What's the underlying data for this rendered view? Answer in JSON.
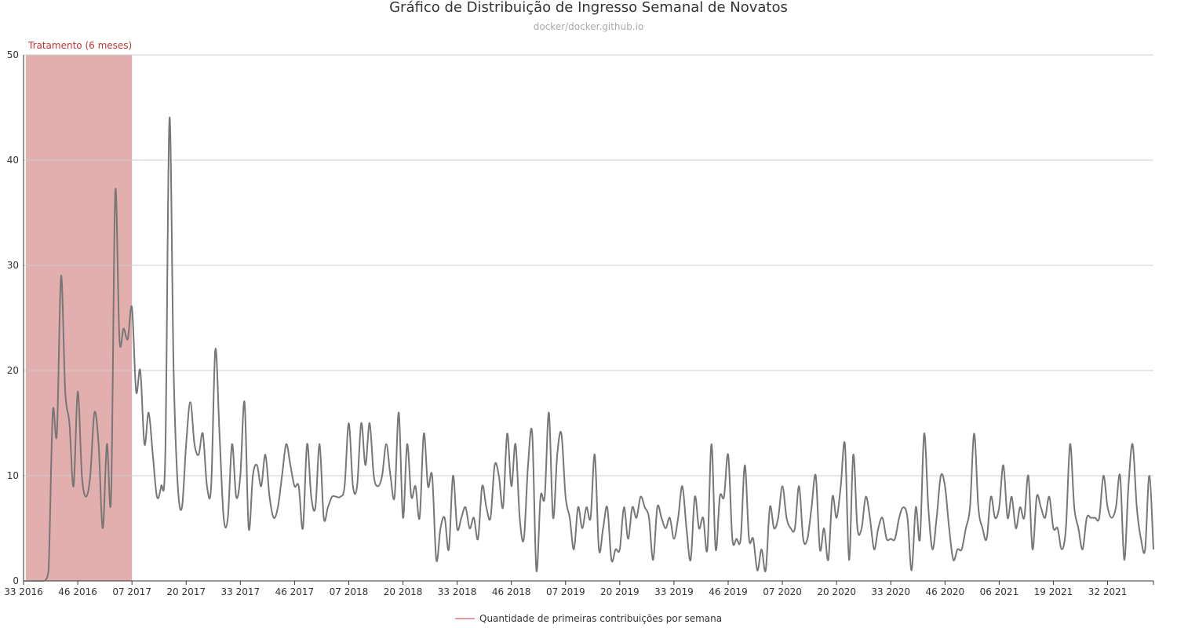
{
  "chart_data": {
    "type": "line",
    "title": "Gráfico de Distribuição de Ingresso Semanal de Novatos",
    "subtitle": "docker/docker.github.io",
    "ylim": [
      0,
      50
    ],
    "yticks": [
      "0",
      "10",
      "20",
      "30",
      "40",
      "50"
    ],
    "x_tick_labels": [
      "33 2016",
      "46 2016",
      "07 2017",
      "20 2017",
      "33 2017",
      "46 2017",
      "07 2018",
      "20 2018",
      "33 2018",
      "46 2018",
      "07 2019",
      "20 2019",
      "33 2019",
      "46 2019",
      "07 2020",
      "20 2020",
      "33 2020",
      "46 2020",
      "06 2021",
      "19 2021",
      "32 2021"
    ],
    "grid": true,
    "legend_position": "bottom-center",
    "band": {
      "label": "Tratamento (6 meses)",
      "x_start_week": 0,
      "x_end_week": 26,
      "color": "#e3aeae",
      "label_color": "#c23531"
    },
    "series": [
      {
        "name": "Quantidade de primeiras contribuições por semana",
        "color": "#777777",
        "legend_color": "#e07b7b",
        "x_start": "33 2016",
        "values": [
          0,
          0,
          0,
          0,
          0,
          0,
          1,
          16,
          14,
          29,
          18,
          15,
          9,
          18,
          10,
          8,
          10,
          16,
          13,
          5,
          13,
          8,
          37,
          23,
          24,
          23,
          26,
          18,
          20,
          13,
          16,
          12,
          8,
          9,
          12,
          44,
          20,
          9,
          7,
          13,
          17,
          13,
          12,
          14,
          9,
          9,
          22,
          14,
          6,
          6,
          13,
          8,
          10,
          17,
          5,
          10,
          11,
          9,
          12,
          8,
          6,
          7,
          10,
          13,
          11,
          9,
          9,
          5,
          13,
          8,
          7,
          13,
          6,
          7,
          8,
          8,
          8,
          9,
          15,
          9,
          9,
          15,
          11,
          15,
          10,
          9,
          10,
          13,
          10,
          8,
          16,
          6,
          13,
          8,
          9,
          6,
          14,
          9,
          10,
          2,
          5,
          6,
          3,
          10,
          5,
          6,
          7,
          5,
          6,
          4,
          9,
          7,
          6,
          11,
          10,
          7,
          14,
          9,
          13,
          6,
          4,
          11,
          14,
          1,
          8,
          8,
          16,
          6,
          12,
          14,
          8,
          6,
          3,
          7,
          5,
          7,
          6,
          12,
          3,
          5,
          7,
          2,
          3,
          3,
          7,
          4,
          7,
          6,
          8,
          7,
          6,
          2,
          7,
          6,
          5,
          6,
          4,
          6,
          9,
          5,
          2,
          8,
          5,
          6,
          3,
          13,
          3,
          8,
          8,
          12,
          4,
          4,
          4,
          11,
          4,
          4,
          1,
          3,
          1,
          7,
          5,
          6,
          9,
          6,
          5,
          5,
          9,
          4,
          4,
          7,
          10,
          3,
          5,
          2,
          8,
          6,
          9,
          13,
          2,
          12,
          5,
          5,
          8,
          6,
          3,
          5,
          6,
          4,
          4,
          4,
          6,
          7,
          6,
          1,
          7,
          4,
          14,
          7,
          3,
          6,
          10,
          9,
          5,
          2,
          3,
          3,
          5,
          7,
          14,
          7,
          5,
          4,
          8,
          6,
          7,
          11,
          6,
          8,
          5,
          7,
          6,
          10,
          3,
          8,
          7,
          6,
          8,
          5,
          5,
          3,
          5,
          13,
          7,
          5,
          3,
          6,
          6,
          6,
          6,
          10,
          7,
          6,
          7,
          10,
          2,
          9,
          13,
          7,
          4,
          3,
          10,
          3
        ]
      }
    ]
  }
}
